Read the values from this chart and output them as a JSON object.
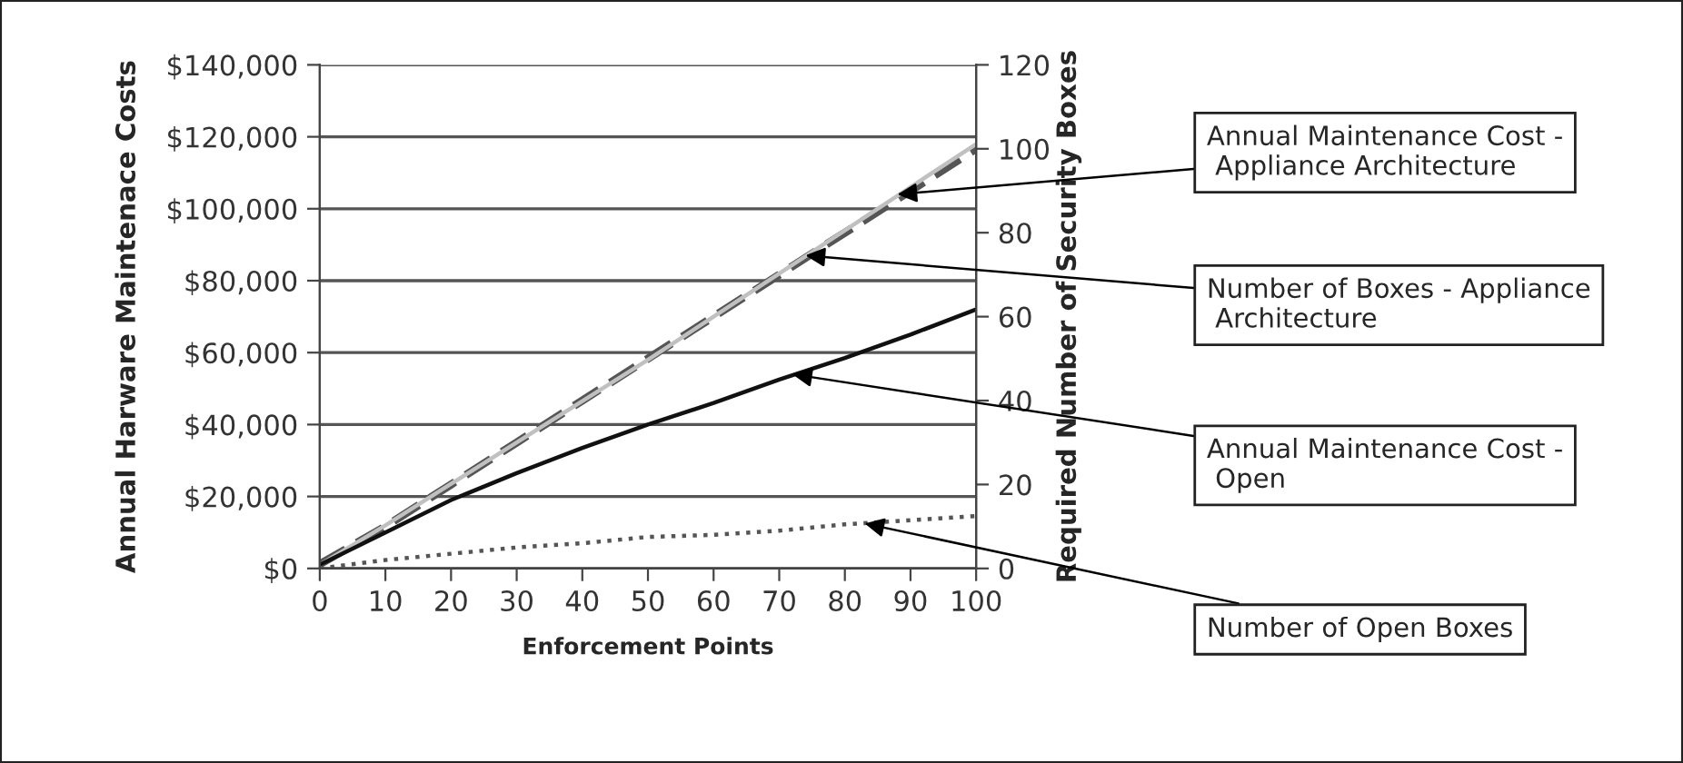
{
  "chart_data": {
    "type": "line",
    "x": [
      0,
      10,
      20,
      30,
      40,
      50,
      60,
      70,
      80,
      90,
      100
    ],
    "xlabel": "Enforcement Points",
    "ylabel": "Annual Harware Maintenace Costs",
    "y2label": "Required Number of Security Boxes",
    "series": [
      {
        "color": "#c0c0c0",
        "line_style": "solid",
        "values": [
          1000,
          12000,
          23500,
          35000,
          46500,
          58000,
          70000,
          82000,
          94000,
          106000,
          118000
        ]
      },
      {
        "color": "#555555",
        "line_style": "dashed",
        "axis": "y2",
        "values": [
          1,
          10,
          20,
          30,
          40,
          50,
          60,
          70,
          80,
          90,
          100
        ]
      },
      {
        "color": "#111111",
        "line_style": "solid",
        "values": [
          1000,
          10000,
          19000,
          26500,
          33500,
          40000,
          46000,
          52500,
          58500,
          65000,
          72000
        ]
      },
      {
        "color": "#555555",
        "line_style": "dotted",
        "axis": "y2",
        "values": [
          0,
          2,
          3.5,
          5,
          6,
          7.5,
          8,
          9,
          10.5,
          11.5,
          12.5
        ]
      }
    ],
    "xlim": [
      0,
      100
    ],
    "xticks": [
      0,
      10,
      20,
      30,
      40,
      50,
      60,
      70,
      80,
      90,
      100
    ],
    "ylim": [
      0,
      140000
    ],
    "yticks": [
      {
        "value": 0,
        "label": "$0"
      },
      {
        "value": 20000,
        "label": "$20,000"
      },
      {
        "value": 40000,
        "label": "$40,000"
      },
      {
        "value": 60000,
        "label": "$60,000"
      },
      {
        "value": 80000,
        "label": "$80,000"
      },
      {
        "value": 100000,
        "label": "$100,000"
      },
      {
        "value": 120000,
        "label": "$120,000"
      },
      {
        "value": 140000,
        "label": "$140,000"
      }
    ],
    "y2lim": [
      0,
      120
    ],
    "y2ticks": [
      0,
      20,
      40,
      60,
      80,
      100,
      120
    ],
    "grid": "y",
    "annotations": [
      {
        "text": "Annual Maintenance Cost -\n Appliance Architecture",
        "x": 88,
        "y": 104000
      },
      {
        "text": "Number of Boxes - Appliance\n Architecture",
        "x": 74,
        "y": 87000
      },
      {
        "text": "Annual Maintenance Cost -\n Open",
        "x": 72,
        "y": 54000
      },
      {
        "text": "Number of Open Boxes",
        "x": 83,
        "y": 12500
      }
    ]
  }
}
